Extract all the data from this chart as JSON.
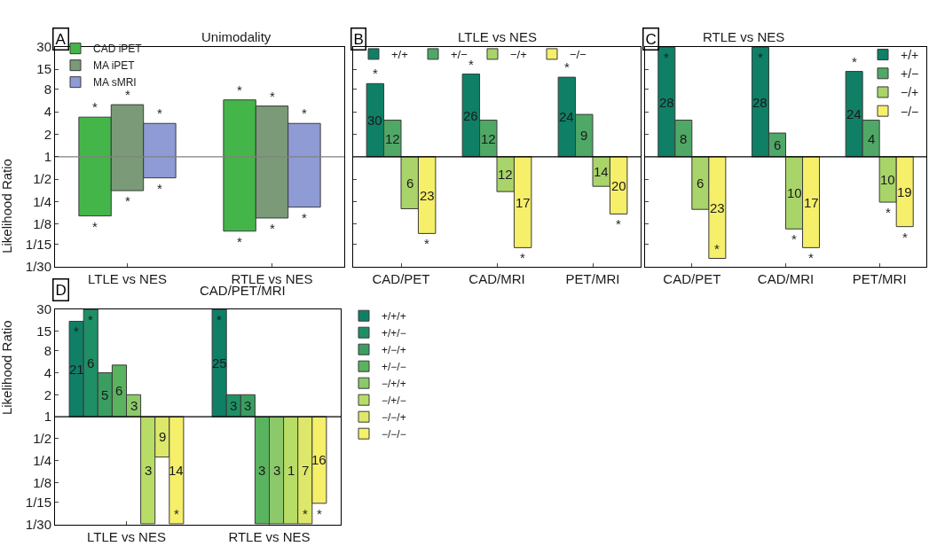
{
  "chart_data": [
    {
      "type": "bar",
      "title": "Unimodality",
      "ylabel": "Likelihood Ratio",
      "categories": [
        "LTLE vs NES",
        "RTLE vs NES"
      ],
      "log": "y",
      "legend": "top left",
      "ylim": [
        0.0333,
        30
      ],
      "yticks": [
        {
          "value": 0.0333,
          "label": "1/30"
        },
        {
          "value": 0.0667,
          "label": "1/15"
        },
        {
          "value": 0.125,
          "label": "1/8"
        },
        {
          "value": 0.25,
          "label": "1/4"
        },
        {
          "value": 0.5,
          "label": "1/2"
        },
        1,
        2,
        4,
        8,
        15,
        30
      ],
      "ref_lines": [
        {
          "axis": "y",
          "value": 1,
          "color": "#808080"
        }
      ],
      "series": [
        {
          "name": "CAD iPET",
          "color": "#44b649",
          "base": [
            0.16,
            0.1
          ],
          "values": [
            3.24,
            5.7
          ]
        },
        {
          "name": "MA iPET",
          "color": "#7a9a78",
          "base": [
            0.35,
            0.15
          ],
          "values": [
            4.65,
            4.65
          ]
        },
        {
          "name": "MA sMRI",
          "color": "#8f9bd4",
          "base": [
            0.52,
            0.21
          ],
          "values": [
            2.28,
            2.59
          ]
        }
      ],
      "annotations": [
        "A",
        "*",
        "*",
        "*",
        "*",
        "*",
        "*",
        "*",
        "*",
        "*",
        "*",
        "*",
        "*"
      ]
    },
    {
      "type": "bar",
      "title": "LTLE vs NES",
      "categories": [
        "CAD/PET",
        "CAD/MRI",
        "PET/MRI"
      ],
      "log": "y",
      "legend": "top",
      "tick_labels": "x",
      "ylim": [
        0.0333,
        30
      ],
      "yticks": [
        {
          "value": 0.0333,
          "label": null
        },
        {
          "value": 0.0667,
          "label": null
        },
        {
          "value": 0.125,
          "label": null
        },
        {
          "value": 0.25,
          "label": null
        },
        {
          "value": 0.5,
          "label": null
        },
        {
          "value": 1,
          "label": null
        },
        {
          "value": 2,
          "label": null
        },
        {
          "value": 4,
          "label": null
        },
        {
          "value": 8,
          "label": null
        },
        {
          "value": 15,
          "label": null
        },
        {
          "value": 30,
          "label": null
        }
      ],
      "ref_lines": [
        {
          "axis": "y",
          "value": 1,
          "color": "#000000"
        }
      ],
      "series": [
        {
          "name": "+/+",
          "color": "#0f7f66",
          "base": [
            1,
            1,
            1
          ],
          "values": [
            8.6,
            11.9,
            10.7
          ]
        },
        {
          "name": "+/−",
          "color": "#4fa866",
          "base": [
            1,
            1,
            1
          ],
          "values": [
            2.1,
            2.1,
            2.7
          ]
        },
        {
          "name": "−/+",
          "color": "#a8d46a",
          "base": [
            1,
            1,
            1
          ],
          "values": [
            -0.8,
            -0.66,
            -0.6
          ]
        },
        {
          "name": "−/−",
          "color": "#f5ef6a",
          "base": [
            1,
            1,
            1
          ],
          "values": [
            -0.907,
            -0.94,
            -0.83
          ]
        }
      ],
      "annotations": [
        "B",
        "30",
        "26",
        "24",
        "12",
        "12",
        "9",
        "6",
        "12",
        "14",
        "23",
        "17",
        "20",
        "*",
        "*",
        "*",
        "*",
        "*",
        "*"
      ]
    },
    {
      "type": "bar",
      "title": "RTLE vs NES",
      "categories": [
        "CAD/PET",
        "CAD/MRI",
        "PET/MRI"
      ],
      "log": "y",
      "legend": "top right",
      "tick_labels": "x",
      "ylim": [
        0.0333,
        30
      ],
      "yticks": [
        {
          "value": 0.0333,
          "label": null
        },
        {
          "value": 0.0667,
          "label": null
        },
        {
          "value": 0.125,
          "label": null
        },
        {
          "value": 0.25,
          "label": null
        },
        {
          "value": 0.5,
          "label": null
        },
        {
          "value": 1,
          "label": null
        },
        {
          "value": 2,
          "label": null
        },
        {
          "value": 4,
          "label": null
        },
        {
          "value": 8,
          "label": null
        },
        {
          "value": 15,
          "label": null
        },
        {
          "value": 30,
          "label": null
        }
      ],
      "ref_lines": [
        {
          "axis": "y",
          "value": 1,
          "color": "#000000"
        }
      ],
      "series": [
        {
          "name": "+/+",
          "color": "#0f7f66",
          "base": [
            1,
            1,
            1
          ],
          "values": [
            28.5,
            28.5,
            13
          ]
        },
        {
          "name": "+/−",
          "color": "#4fa866",
          "base": [
            1,
            1,
            1
          ],
          "values": [
            2.1,
            1.08,
            2.1
          ]
        },
        {
          "name": "−/+",
          "color": "#a8d46a",
          "base": [
            1,
            1,
            1
          ],
          "values": [
            -0.804,
            -0.893,
            -0.755
          ]
        },
        {
          "name": "−/−",
          "color": "#f5ef6a",
          "base": [
            1,
            1,
            1
          ],
          "values": [
            -0.957,
            -0.94,
            -0.885
          ]
        }
      ],
      "annotations": [
        "C",
        "28",
        "28",
        "24",
        "8",
        "6",
        "4",
        "6",
        "10",
        "10",
        "23",
        "17",
        "19",
        "*",
        "*",
        "*",
        "*",
        "*",
        "*",
        "*",
        "*"
      ]
    },
    {
      "type": "bar",
      "title": "CAD/PET/MRI",
      "ylabel": "Likelihood Ratio",
      "categories": [
        "LTLE vs NES",
        "RTLE vs NES"
      ],
      "log": "y",
      "legend": "top right",
      "ylim": [
        0.0333,
        30
      ],
      "yticks": [
        {
          "value": 0.0333,
          "label": "1/30"
        },
        {
          "value": 0.0667,
          "label": "1/15"
        },
        {
          "value": 0.125,
          "label": "1/8"
        },
        {
          "value": 0.25,
          "label": "1/4"
        },
        {
          "value": 0.5,
          "label": "1/2"
        },
        1,
        2,
        4,
        8,
        15,
        30
      ],
      "ref_lines": [
        {
          "axis": "y",
          "value": 1,
          "color": "#000000"
        }
      ],
      "series": [
        {
          "name": "+/+/+",
          "color": "#0f7f66",
          "base": [
            1,
            1
          ],
          "values": [
            19.3,
            28.5
          ]
        },
        {
          "name": "+/+/−",
          "color": "#1f9065",
          "base": [
            1,
            1
          ],
          "values": [
            28.5,
            1.0
          ]
        },
        {
          "name": "+/−/+",
          "color": "#3a9e62",
          "base": [
            1,
            1
          ],
          "values": [
            3.0,
            1.0
          ]
        },
        {
          "name": "+/−/−",
          "color": "#5ab35e",
          "base": [
            1,
            1
          ],
          "values": [
            4.1,
            -0.966
          ]
        },
        {
          "name": "−/+/+",
          "color": "#8cc96a",
          "base": [
            1,
            1
          ],
          "values": [
            1.0,
            -0.966
          ]
        },
        {
          "name": "−/+/−",
          "color": "#b8dd66",
          "base": [
            1,
            1
          ],
          "values": [
            -0.966,
            -0.966
          ]
        },
        {
          "name": "−/−/+",
          "color": "#dde86a",
          "base": [
            1,
            1
          ],
          "values": [
            -0.72,
            -0.966
          ]
        },
        {
          "name": "−/−/−",
          "color": "#f5ef6a",
          "base": [
            1,
            1
          ],
          "values": [
            -0.966,
            -0.935
          ]
        }
      ],
      "annotations": [
        "D",
        "21",
        "25",
        "6",
        "3",
        "5",
        "3",
        "6",
        "3",
        "3",
        "3",
        "3",
        "1",
        "9",
        "7",
        "14",
        "16",
        "*",
        "*",
        "*",
        "*",
        "*",
        "*"
      ]
    }
  ]
}
